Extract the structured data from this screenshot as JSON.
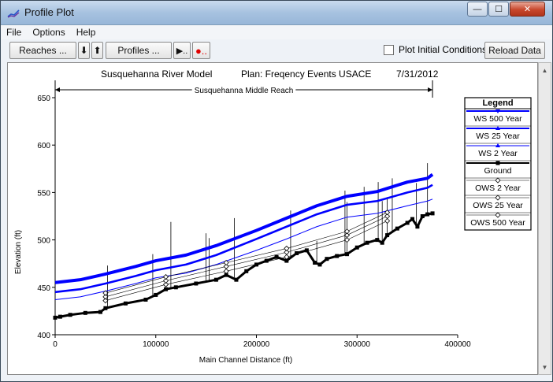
{
  "window": {
    "title": "Profile Plot",
    "icon": "profile-chart-icon",
    "controls": {
      "minimize": "—",
      "maximize": "☐",
      "close": "✕"
    }
  },
  "menu": {
    "items": [
      "File",
      "Options",
      "Help"
    ]
  },
  "toolbar": {
    "reaches_label": "Reaches ...",
    "down_arrow": "⬇",
    "up_arrow": "⬆",
    "profiles_label": "Profiles ...",
    "animate_label": "▶..",
    "record_label": "●..",
    "plot_initial_label": "Plot Initial Conditions",
    "plot_initial_checked": false,
    "reload_label": "Reload Data"
  },
  "chart_data": {
    "type": "line",
    "title_model": "Susquehanna River Model",
    "title_plan": "Plan: Freqency Events USACE",
    "title_date": "7/31/2012",
    "reach_label": "Susquehanna Middle Reach",
    "reach_extent": [
      0,
      375000
    ],
    "xlabel": "Main Channel Distance (ft)",
    "ylabel": "Elevation (ft)",
    "xlim": [
      0,
      400000
    ],
    "ylim": [
      400,
      650
    ],
    "x_ticks": [
      0,
      100000,
      200000,
      300000,
      400000
    ],
    "y_ticks": [
      400,
      450,
      500,
      550,
      600,
      650
    ],
    "legend_title": "Legend",
    "legend_position": "right",
    "legend": [
      {
        "name": "WS  500 Year",
        "color": "#0000ff",
        "marker": "triangle-down",
        "width": 4
      },
      {
        "name": "WS  25 Year",
        "color": "#0000ff",
        "marker": "triangle",
        "width": 2.6
      },
      {
        "name": "WS  2 Year",
        "color": "#0000ff",
        "marker": "triangle",
        "width": 1
      },
      {
        "name": "Ground",
        "color": "#000000",
        "marker": "square",
        "width": 3
      },
      {
        "name": "OWS  2 Year",
        "color": "#000000",
        "marker": "diamond-open",
        "width": 0.6
      },
      {
        "name": "OWS  25 Year",
        "color": "#000000",
        "marker": "diamond-open",
        "width": 0.6
      },
      {
        "name": "OWS  500 Year",
        "color": "#000000",
        "marker": "diamond-open",
        "width": 0.6
      }
    ],
    "series": [
      {
        "name": "WS  500 Year",
        "x": [
          0,
          25000,
          50000,
          80000,
          100000,
          130000,
          160000,
          200000,
          230000,
          260000,
          290000,
          320000,
          350000,
          370000,
          375000
        ],
        "y": [
          455,
          458,
          464,
          472,
          478,
          484,
          494,
          510,
          523,
          536,
          546,
          551,
          561,
          565,
          569
        ]
      },
      {
        "name": "WS  25 Year",
        "x": [
          0,
          25000,
          50000,
          80000,
          100000,
          130000,
          160000,
          200000,
          230000,
          260000,
          290000,
          320000,
          350000,
          370000,
          375000
        ],
        "y": [
          445,
          448,
          454,
          462,
          468,
          474,
          484,
          501,
          514,
          527,
          537,
          541,
          550,
          555,
          558
        ]
      },
      {
        "name": "WS  2 Year",
        "x": [
          0,
          25000,
          50000,
          80000,
          100000,
          130000,
          160000,
          200000,
          230000,
          260000,
          290000,
          320000,
          350000,
          370000,
          375000
        ],
        "y": [
          437,
          440,
          446,
          454,
          460,
          465,
          474,
          489,
          501,
          514,
          524,
          528,
          536,
          541,
          543
        ]
      },
      {
        "name": "Ground",
        "x": [
          0,
          5000,
          15000,
          30000,
          45000,
          50000,
          70000,
          90000,
          100000,
          110000,
          120000,
          140000,
          160000,
          170000,
          180000,
          190000,
          200000,
          210000,
          220000,
          230000,
          240000,
          250000,
          258000,
          263000,
          270000,
          280000,
          290000,
          300000,
          310000,
          320000,
          325000,
          330000,
          340000,
          350000,
          355000,
          360000,
          365000,
          370000,
          375000
        ],
        "y": [
          418,
          419,
          421,
          423,
          424,
          428,
          433,
          437,
          442,
          448,
          450,
          454,
          458,
          463,
          458,
          467,
          474,
          478,
          482,
          478,
          486,
          489,
          476,
          474,
          480,
          483,
          485,
          492,
          497,
          500,
          497,
          505,
          512,
          518,
          522,
          514,
          525,
          527,
          528
        ]
      },
      {
        "name": "OWS  2 Year",
        "x": [
          50000,
          110000,
          170000,
          230000,
          290000,
          330000
        ],
        "y": [
          436,
          453,
          467,
          482,
          500,
          520
        ]
      },
      {
        "name": "OWS  25 Year",
        "x": [
          50000,
          110000,
          170000,
          230000,
          290000,
          330000
        ],
        "y": [
          440,
          457,
          472,
          487,
          505,
          525
        ]
      },
      {
        "name": "OWS  500 Year",
        "x": [
          50000,
          110000,
          170000,
          230000,
          290000,
          330000
        ],
        "y": [
          444,
          461,
          476,
          491,
          509,
          529
        ]
      }
    ],
    "vertical_lines": [
      {
        "x": 52000,
        "top": 473
      },
      {
        "x": 97000,
        "top": 485
      },
      {
        "x": 115000,
        "top": 519
      },
      {
        "x": 150000,
        "top": 507
      },
      {
        "x": 153000,
        "top": 502
      },
      {
        "x": 178000,
        "top": 523
      },
      {
        "x": 234000,
        "top": 531
      },
      {
        "x": 260000,
        "top": 499
      },
      {
        "x": 288000,
        "top": 552
      },
      {
        "x": 290000,
        "top": 540
      },
      {
        "x": 307000,
        "top": 556
      },
      {
        "x": 321000,
        "top": 561
      },
      {
        "x": 325000,
        "top": 541
      },
      {
        "x": 330000,
        "top": 545
      },
      {
        "x": 335000,
        "top": 565
      },
      {
        "x": 359000,
        "top": 560
      },
      {
        "x": 370000,
        "top": 581
      }
    ]
  }
}
